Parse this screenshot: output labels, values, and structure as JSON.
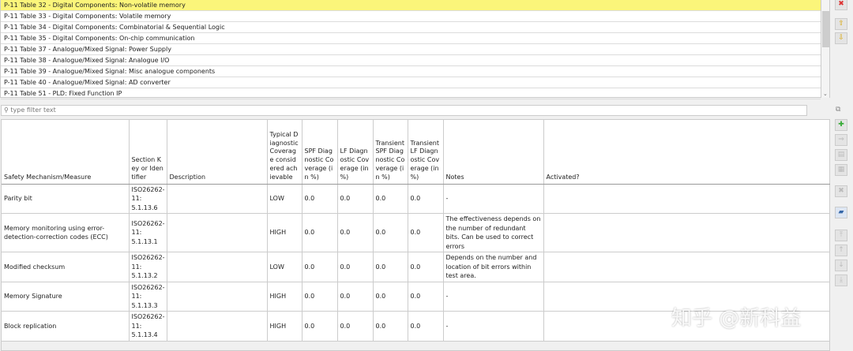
{
  "list": {
    "items": [
      "P-11 Table 32 - Digital Components: Non-volatile memory",
      "P-11 Table 33 - Digital Components: Volatile memory",
      "P-11 Table 34 - Digital Components: Combinatorial & Sequential Logic",
      "P-11 Table 35 - Digital Components: On-chip communication",
      "P-11 Table 37 - Analogue/Mixed Signal: Power Supply",
      "P-11 Table 38 - Analogue/Mixed Signal: Analogue I/O",
      "P-11 Table 39 - Analogue/Mixed Signal: Misc analogue components",
      "P-11 Table 40 - Analogue/Mixed Signal: AD converter",
      "P-11 Table 51 - PLD: Fixed Function IP"
    ],
    "selected_index": 0,
    "selected_color": "#fbf57a"
  },
  "filter": {
    "placeholder": "type filter text"
  },
  "table": {
    "headers": [
      "Safety Mechanism/Measure",
      "Section Key or Identifier",
      "Description",
      "Typical Diagnostic Coverage considered achievable",
      "SPF Diagnostic Coverage (in %)",
      "LF Diagnostic Coverage (in %)",
      "Transient SPF Diagnostic Coverage (in %)",
      "Transient LF Diagnostic Coverage (in %)",
      "Notes",
      "Activated?"
    ],
    "rows": [
      [
        "Parity bit",
        "ISO26262-11: 5.1.13.6",
        "",
        "LOW",
        "0.0",
        "0.0",
        "0.0",
        "0.0",
        "-",
        ""
      ],
      [
        "Memory monitoring using error-detection-correction codes (ECC)",
        "ISO26262-11: 5.1.13.1",
        "",
        "HIGH",
        "0.0",
        "0.0",
        "0.0",
        "0.0",
        "The effectiveness depends on the number of redundant bits. Can be used to correct errors",
        ""
      ],
      [
        "Modified checksum",
        "ISO26262-11: 5.1.13.2",
        "",
        "LOW",
        "0.0",
        "0.0",
        "0.0",
        "0.0",
        "Depends on the number and location of bit errors within test area.",
        ""
      ],
      [
        "Memory Signature",
        "ISO26262-11: 5.1.13.3",
        "",
        "HIGH",
        "0.0",
        "0.0",
        "0.0",
        "0.0",
        "-",
        ""
      ],
      [
        "Block replication",
        "ISO26262-11: 5.1.13.4",
        "",
        "HIGH",
        "0.0",
        "0.0",
        "0.0",
        "0.0",
        "-",
        ""
      ]
    ]
  },
  "watermark": "知乎 @新科益"
}
